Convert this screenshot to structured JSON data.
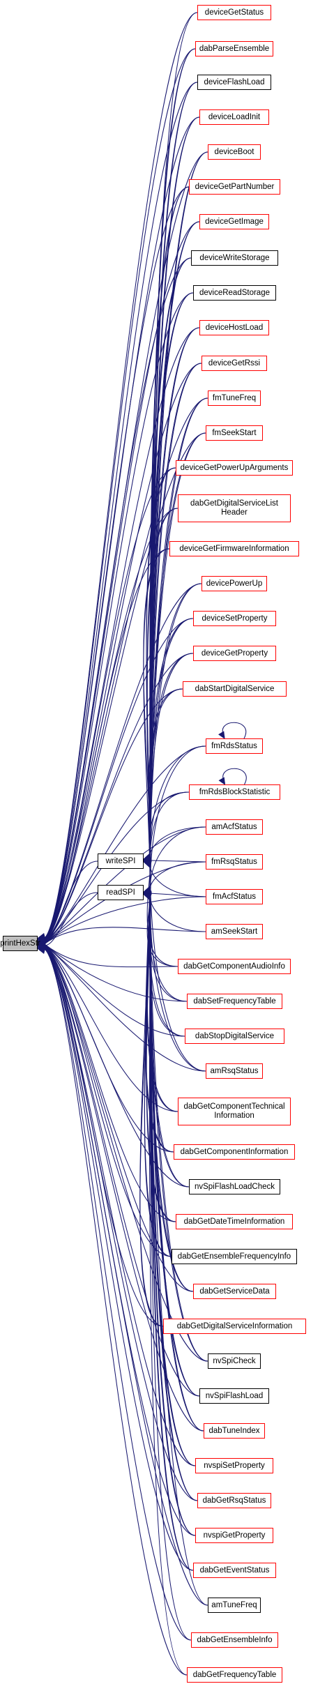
{
  "diagram": {
    "title": "printHexStr",
    "colors": {
      "edge": "#191970",
      "bad_border": "#ff0000",
      "ok_border": "#000000",
      "root_fill": "#bfbfbf"
    },
    "root": {
      "label": "printHexStr"
    },
    "intermediates": [
      {
        "id": "writeSPI",
        "label": "writeSPI"
      },
      {
        "id": "readSPI",
        "label": "readSPI"
      }
    ],
    "callers": [
      {
        "id": "deviceGetStatus",
        "label": "deviceGetStatus",
        "border": "red"
      },
      {
        "id": "dabParseEnsemble",
        "label": "dabParseEnsemble",
        "border": "red"
      },
      {
        "id": "deviceFlashLoad",
        "label": "deviceFlashLoad",
        "border": "black"
      },
      {
        "id": "deviceLoadInit",
        "label": "deviceLoadInit",
        "border": "red"
      },
      {
        "id": "deviceBoot",
        "label": "deviceBoot",
        "border": "red"
      },
      {
        "id": "deviceGetPartNumber",
        "label": "deviceGetPartNumber",
        "border": "red"
      },
      {
        "id": "deviceGetImage",
        "label": "deviceGetImage",
        "border": "red"
      },
      {
        "id": "deviceWriteStorage",
        "label": "deviceWriteStorage",
        "border": "black"
      },
      {
        "id": "deviceReadStorage",
        "label": "deviceReadStorage",
        "border": "black"
      },
      {
        "id": "deviceHostLoad",
        "label": "deviceHostLoad",
        "border": "red"
      },
      {
        "id": "deviceGetRssi",
        "label": "deviceGetRssi",
        "border": "red"
      },
      {
        "id": "fmTuneFreq",
        "label": "fmTuneFreq",
        "border": "red"
      },
      {
        "id": "fmSeekStart",
        "label": "fmSeekStart",
        "border": "red"
      },
      {
        "id": "deviceGetPowerUpArguments",
        "label": "deviceGetPowerUpArguments",
        "border": "red"
      },
      {
        "id": "dabGetDigitalServiceListHeader",
        "label": "dabGetDigitalServiceList\nHeader",
        "border": "red"
      },
      {
        "id": "deviceGetFirmwareInformation",
        "label": "deviceGetFirmwareInformation",
        "border": "red"
      },
      {
        "id": "devicePowerUp",
        "label": "devicePowerUp",
        "border": "red"
      },
      {
        "id": "deviceSetProperty",
        "label": "deviceSetProperty",
        "border": "red"
      },
      {
        "id": "deviceGetProperty",
        "label": "deviceGetProperty",
        "border": "red"
      },
      {
        "id": "dabStartDigitalService",
        "label": "dabStartDigitalService",
        "border": "red"
      },
      {
        "id": "fmRdsStatus",
        "label": "fmRdsStatus",
        "border": "red"
      },
      {
        "id": "fmRdsBlockStatistic",
        "label": "fmRdsBlockStatistic",
        "border": "red"
      },
      {
        "id": "amAcfStatus",
        "label": "amAcfStatus",
        "border": "red"
      },
      {
        "id": "fmRsqStatus",
        "label": "fmRsqStatus",
        "border": "red"
      },
      {
        "id": "fmAcfStatus",
        "label": "fmAcfStatus",
        "border": "red"
      },
      {
        "id": "amSeekStart",
        "label": "amSeekStart",
        "border": "red"
      },
      {
        "id": "dabGetComponentAudioInfo",
        "label": "dabGetComponentAudioInfo",
        "border": "red"
      },
      {
        "id": "dabSetFrequencyTable",
        "label": "dabSetFrequencyTable",
        "border": "red"
      },
      {
        "id": "dabStopDigitalService",
        "label": "dabStopDigitalService",
        "border": "red"
      },
      {
        "id": "amRsqStatus",
        "label": "amRsqStatus",
        "border": "red"
      },
      {
        "id": "dabGetComponentTechnicalInformation",
        "label": "dabGetComponentTechnical\nInformation",
        "border": "red"
      },
      {
        "id": "dabGetComponentInformation",
        "label": "dabGetComponentInformation",
        "border": "red"
      },
      {
        "id": "nvSpiFlashLoadCheck",
        "label": "nvSpiFlashLoadCheck",
        "border": "black"
      },
      {
        "id": "dabGetDateTimeInformation",
        "label": "dabGetDateTimeInformation",
        "border": "red"
      },
      {
        "id": "dabGetEnsembleFrequencyInfo",
        "label": "dabGetEnsembleFrequencyInfo",
        "border": "black"
      },
      {
        "id": "dabGetServiceData",
        "label": "dabGetServiceData",
        "border": "red"
      },
      {
        "id": "dabGetDigitalServiceInformation",
        "label": "dabGetDigitalServiceInformation",
        "border": "red"
      },
      {
        "id": "nvSpiCheck",
        "label": "nvSpiCheck",
        "border": "black"
      },
      {
        "id": "nvSpiFlashLoad",
        "label": "nvSpiFlashLoad",
        "border": "black"
      },
      {
        "id": "dabTuneIndex",
        "label": "dabTuneIndex",
        "border": "red"
      },
      {
        "id": "nvspiSetProperty",
        "label": "nvspiSetProperty",
        "border": "red"
      },
      {
        "id": "dabGetRsqStatus",
        "label": "dabGetRsqStatus",
        "border": "red"
      },
      {
        "id": "nvspiGetProperty",
        "label": "nvspiGetProperty",
        "border": "red"
      },
      {
        "id": "dabGetEventStatus",
        "label": "dabGetEventStatus",
        "border": "red"
      },
      {
        "id": "amTuneFreq",
        "label": "amTuneFreq",
        "border": "black"
      },
      {
        "id": "dabGetEnsembleInfo",
        "label": "dabGetEnsembleInfo",
        "border": "red"
      },
      {
        "id": "dabGetFrequencyTable",
        "label": "dabGetFrequencyTable",
        "border": "red"
      }
    ],
    "self_loops": [
      "fmRdsStatus",
      "fmRdsBlockStatistic"
    ]
  }
}
